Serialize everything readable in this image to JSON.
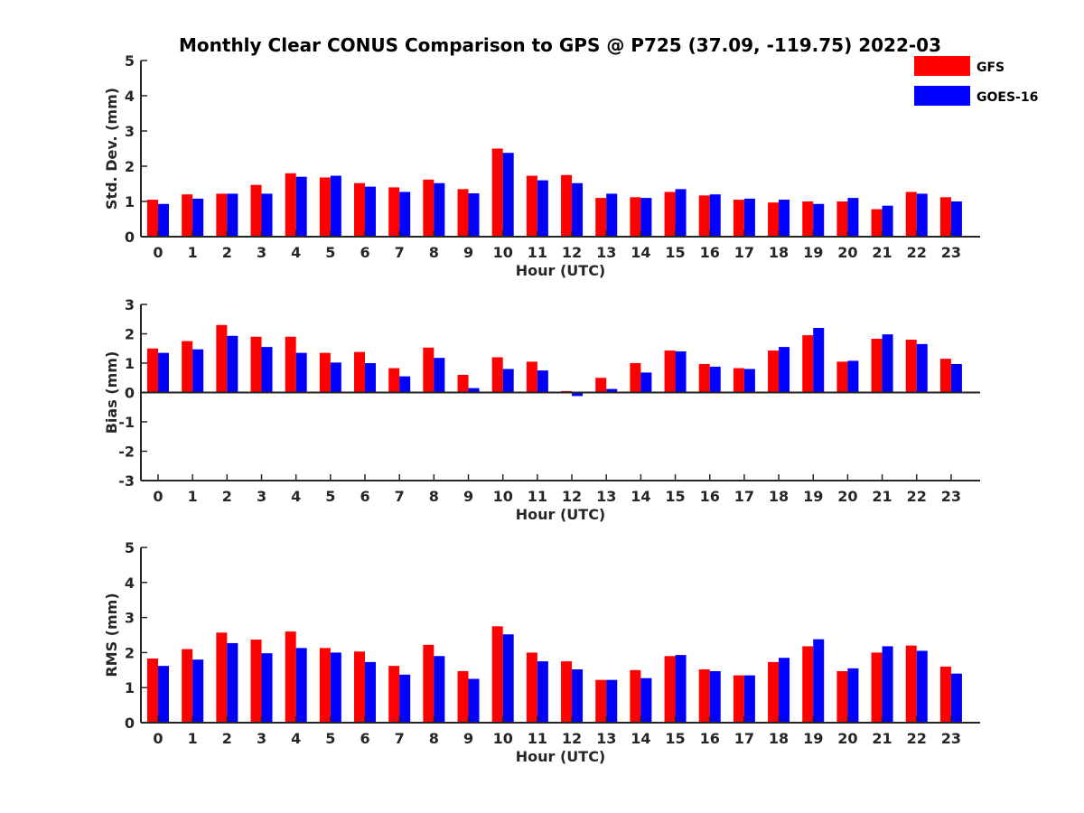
{
  "title": "Monthly Clear CONUS Comparison to GPS @ P725 (37.09, -119.75) 2022-03",
  "legend": [
    {
      "name": "GFS",
      "color": "#ff0000"
    },
    {
      "name": "GOES-16",
      "color": "#0000ff"
    }
  ],
  "chart_data": [
    {
      "type": "bar",
      "xlabel": "Hour (UTC)",
      "ylabel": "Std. Dev. (mm)",
      "ylim": [
        0,
        5
      ],
      "yticks": [
        0,
        1,
        2,
        3,
        4,
        5
      ],
      "categories": [
        "0",
        "1",
        "2",
        "3",
        "4",
        "5",
        "6",
        "7",
        "8",
        "9",
        "10",
        "11",
        "12",
        "13",
        "14",
        "15",
        "16",
        "17",
        "18",
        "19",
        "20",
        "21",
        "22",
        "23"
      ],
      "series": [
        {
          "name": "GFS",
          "color": "#ff0000",
          "values": [
            1.05,
            1.2,
            1.22,
            1.47,
            1.8,
            1.68,
            1.52,
            1.4,
            1.62,
            1.35,
            2.5,
            1.73,
            1.75,
            1.1,
            1.12,
            1.27,
            1.17,
            1.05,
            0.97,
            1.0,
            1.0,
            0.78,
            1.27,
            1.12
          ]
        },
        {
          "name": "GOES-16",
          "color": "#0000ff",
          "values": [
            0.93,
            1.08,
            1.22,
            1.22,
            1.7,
            1.73,
            1.42,
            1.27,
            1.52,
            1.23,
            2.38,
            1.6,
            1.52,
            1.22,
            1.1,
            1.35,
            1.2,
            1.08,
            1.05,
            0.93,
            1.1,
            0.88,
            1.22,
            1.0
          ]
        }
      ]
    },
    {
      "type": "bar",
      "xlabel": "Hour (UTC)",
      "ylabel": "Bias (mm)",
      "ylim": [
        -3,
        3
      ],
      "yticks": [
        -3,
        -2,
        -1,
        0,
        1,
        2,
        3
      ],
      "categories": [
        "0",
        "1",
        "2",
        "3",
        "4",
        "5",
        "6",
        "7",
        "8",
        "9",
        "10",
        "11",
        "12",
        "13",
        "14",
        "15",
        "16",
        "17",
        "18",
        "19",
        "20",
        "21",
        "22",
        "23"
      ],
      "series": [
        {
          "name": "GFS",
          "color": "#ff0000",
          "values": [
            1.5,
            1.75,
            2.3,
            1.9,
            1.9,
            1.35,
            1.38,
            0.83,
            1.53,
            0.6,
            1.2,
            1.05,
            0.05,
            0.5,
            1.0,
            1.43,
            0.97,
            0.83,
            1.43,
            1.95,
            1.05,
            1.83,
            1.8,
            1.15
          ]
        },
        {
          "name": "GOES-16",
          "color": "#0000ff",
          "values": [
            1.35,
            1.47,
            1.93,
            1.55,
            1.35,
            1.02,
            1.0,
            0.55,
            1.18,
            0.15,
            0.8,
            0.75,
            -0.12,
            0.12,
            0.68,
            1.4,
            0.88,
            0.8,
            1.55,
            2.2,
            1.08,
            1.98,
            1.65,
            0.97
          ]
        }
      ]
    },
    {
      "type": "bar",
      "xlabel": "Hour (UTC)",
      "ylabel": "RMS (mm)",
      "ylim": [
        0,
        5
      ],
      "yticks": [
        0,
        1,
        2,
        3,
        4,
        5
      ],
      "categories": [
        "0",
        "1",
        "2",
        "3",
        "4",
        "5",
        "6",
        "7",
        "8",
        "9",
        "10",
        "11",
        "12",
        "13",
        "14",
        "15",
        "16",
        "17",
        "18",
        "19",
        "20",
        "21",
        "22",
        "23"
      ],
      "series": [
        {
          "name": "GFS",
          "color": "#ff0000",
          "values": [
            1.83,
            2.1,
            2.57,
            2.37,
            2.6,
            2.13,
            2.03,
            1.62,
            2.22,
            1.47,
            2.75,
            2.0,
            1.75,
            1.22,
            1.5,
            1.9,
            1.52,
            1.35,
            1.73,
            2.18,
            1.47,
            2.0,
            2.2,
            1.6
          ]
        },
        {
          "name": "GOES-16",
          "color": "#0000ff",
          "values": [
            1.62,
            1.8,
            2.27,
            1.98,
            2.13,
            2.0,
            1.73,
            1.37,
            1.9,
            1.25,
            2.52,
            1.75,
            1.52,
            1.22,
            1.27,
            1.93,
            1.47,
            1.35,
            1.85,
            2.38,
            1.55,
            2.18,
            2.05,
            1.4
          ]
        }
      ]
    }
  ]
}
